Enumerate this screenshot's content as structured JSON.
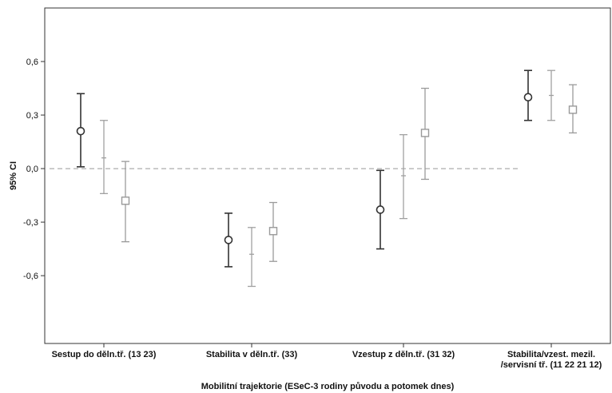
{
  "chart_data": {
    "type": "errorbar",
    "xlabel": "Mobilitní trajektorie (ESeC-3 rodiny původu a potomek dnes)",
    "ylabel": "95% CI",
    "ylim": [
      -0.98,
      0.9
    ],
    "yticks": [
      {
        "value": 0.6,
        "label": "0,6"
      },
      {
        "value": 0.3,
        "label": "0,3"
      },
      {
        "value": 0.0,
        "label": "0,0"
      },
      {
        "value": -0.3,
        "label": "-0,3"
      },
      {
        "value": -0.6,
        "label": "-0,6"
      }
    ],
    "reference_line": {
      "value": 0.0,
      "style": "dashed"
    },
    "categories": [
      {
        "lines": [
          "Sestup do děln.tř. (13 23)"
        ]
      },
      {
        "lines": [
          "Stabilita v děln.tř. (33)"
        ]
      },
      {
        "lines": [
          "Vzestup z děln.tř. (31 32)"
        ]
      },
      {
        "lines": [
          "Stabilita/vzest. mezil.",
          "/servisní tř. (11 22 21 12)"
        ]
      }
    ],
    "series": [
      {
        "marker": "circle",
        "color": "#333333",
        "points": [
          {
            "mean": 0.21,
            "low": 0.01,
            "high": 0.42
          },
          {
            "mean": -0.4,
            "low": -0.55,
            "high": -0.25
          },
          {
            "mean": -0.23,
            "low": -0.45,
            "high": -0.01
          },
          {
            "mean": 0.4,
            "low": 0.27,
            "high": 0.55
          }
        ]
      },
      {
        "marker": "none",
        "color": "#a0a0a0",
        "points": [
          {
            "mean": 0.06,
            "low": -0.14,
            "high": 0.27
          },
          {
            "mean": -0.48,
            "low": -0.66,
            "high": -0.33
          },
          {
            "mean": -0.04,
            "low": -0.28,
            "high": 0.19
          },
          {
            "mean": 0.41,
            "low": 0.27,
            "high": 0.55
          }
        ]
      },
      {
        "marker": "square",
        "color": "#9a9a9a",
        "points": [
          {
            "mean": -0.18,
            "low": -0.41,
            "high": 0.04
          },
          {
            "mean": -0.35,
            "low": -0.52,
            "high": -0.19
          },
          {
            "mean": 0.2,
            "low": -0.06,
            "high": 0.45
          },
          {
            "mean": 0.33,
            "low": 0.2,
            "high": 0.47
          }
        ]
      }
    ]
  }
}
